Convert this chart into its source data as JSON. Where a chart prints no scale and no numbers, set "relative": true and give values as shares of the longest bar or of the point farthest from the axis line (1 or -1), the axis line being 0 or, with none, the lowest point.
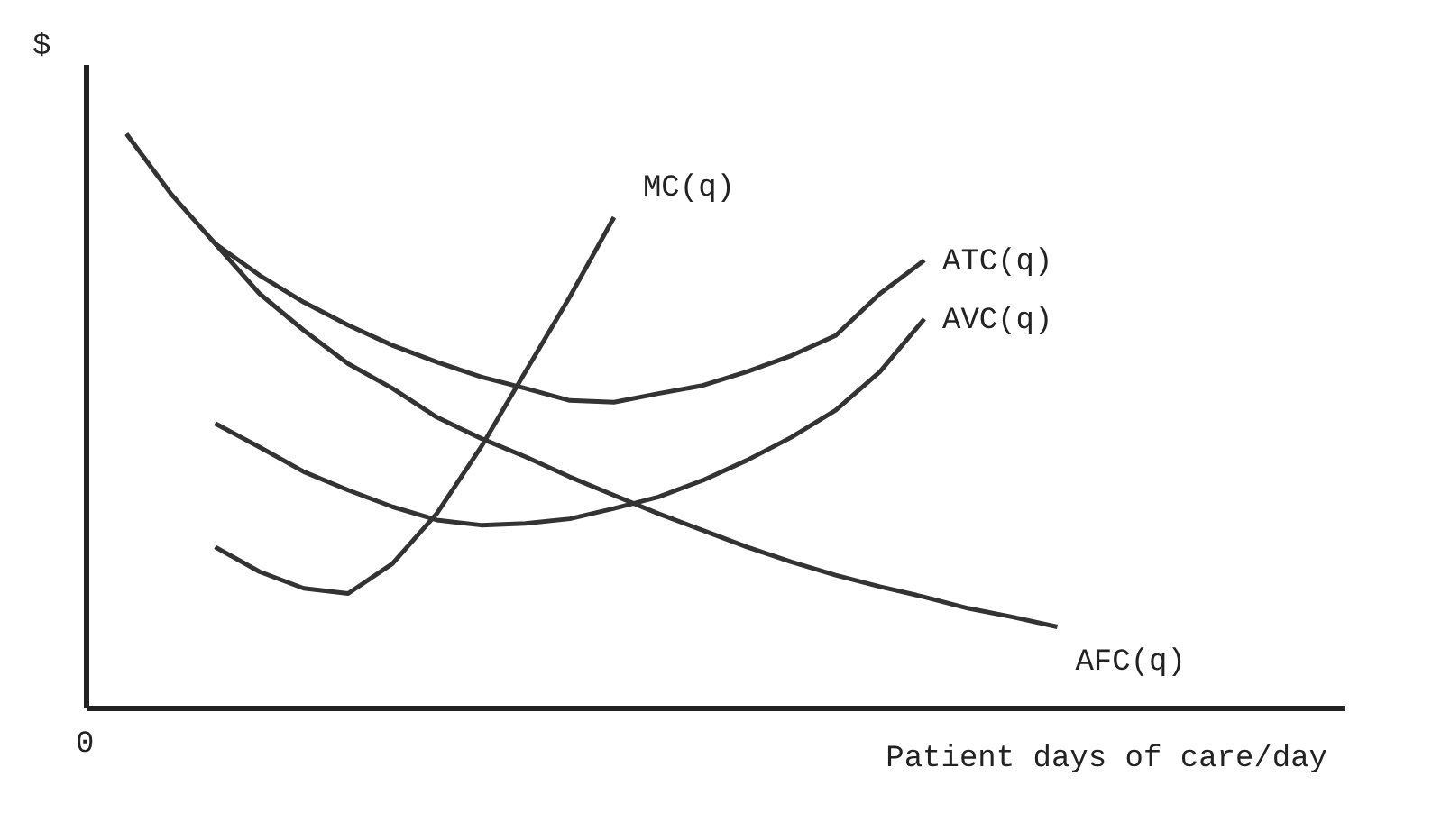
{
  "chart_data": {
    "type": "line",
    "relative": true,
    "xlabel": "Patient days of care/day",
    "ylabel": "$",
    "annotations": [
      "0"
    ],
    "legend": false,
    "grid": false,
    "marker": "none",
    "line_style": "solid",
    "categories": [
      null,
      null,
      null,
      null,
      null,
      null,
      null,
      null,
      null,
      null,
      null,
      null,
      null,
      null,
      null,
      null,
      null,
      null,
      null,
      null,
      null,
      null
    ],
    "series": [
      {
        "name": "MC(q)",
        "color": "#333333",
        "values": [
          null,
          null,
          0.281,
          0.238,
          0.209,
          0.2,
          0.252,
          0.339,
          0.455,
          0.586,
          0.716,
          0.855,
          null,
          null,
          null,
          null,
          null,
          null,
          null,
          null,
          null,
          null
        ]
      },
      {
        "name": "ATC(q)",
        "color": "#333333",
        "values": [
          null,
          null,
          0.809,
          0.754,
          0.707,
          0.667,
          0.632,
          0.603,
          0.577,
          0.557,
          0.536,
          0.533,
          0.548,
          0.562,
          0.586,
          0.614,
          0.649,
          0.722,
          0.78,
          null,
          null,
          null
        ]
      },
      {
        "name": "AVC(q)",
        "color": "#333333",
        "values": [
          null,
          null,
          0.496,
          0.455,
          0.412,
          0.38,
          0.351,
          0.328,
          0.319,
          0.322,
          0.33,
          0.348,
          0.368,
          0.397,
          0.432,
          0.472,
          0.519,
          0.586,
          0.678,
          null,
          null,
          null
        ]
      },
      {
        "name": "AFC(q)",
        "color": "#333333",
        "values": [
          1.0,
          0.896,
          0.809,
          0.722,
          0.658,
          0.6,
          0.557,
          0.507,
          0.47,
          0.438,
          0.403,
          0.371,
          0.339,
          0.31,
          0.281,
          0.255,
          0.232,
          0.212,
          0.194,
          0.174,
          0.159,
          0.142
        ]
      }
    ]
  }
}
